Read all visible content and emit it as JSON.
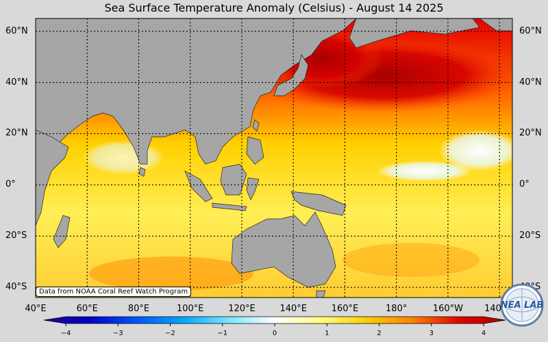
{
  "title": "Sea Surface Temperature Anomaly (Celsius) - August 14 2025",
  "credit": "Data from NOAA Coral Reef Watch Program",
  "lat_labels": [
    "60°N",
    "40°N",
    "20°N",
    "0°",
    "20°S",
    "40°S"
  ],
  "lat_values": [
    60,
    40,
    20,
    0,
    -20,
    -40
  ],
  "lon_labels": [
    "40°E",
    "60°E",
    "80°E",
    "100°E",
    "120°E",
    "140°E",
    "160°E",
    "180°",
    "160°W",
    "140°W"
  ],
  "lon_values": [
    40,
    60,
    80,
    100,
    120,
    140,
    160,
    180,
    200,
    220
  ],
  "map_extent": {
    "lon_min": 40,
    "lon_max": 225,
    "lat_min": -44,
    "lat_max": 65
  },
  "colorbar": {
    "min": -4,
    "max": 4,
    "tick_labels": [
      "−4",
      "−3",
      "−2",
      "−1",
      "0",
      "1",
      "2",
      "3",
      "4"
    ],
    "tick_values": [
      -4,
      -3,
      -2,
      -1,
      0,
      1,
      2,
      3,
      4
    ],
    "colors": [
      "#2a0086",
      "#0000cc",
      "#0055ff",
      "#00a6ff",
      "#77e6ff",
      "#ffffff",
      "#ffff80",
      "#ffcc00",
      "#ff8000",
      "#e60000",
      "#a80000"
    ]
  },
  "colors": {
    "land": "#a6a6a6",
    "background": "#d9d9d9",
    "grid": "#000000"
  },
  "logo": {
    "text": "NEA LAB",
    "icon": "globe-logo-icon"
  }
}
